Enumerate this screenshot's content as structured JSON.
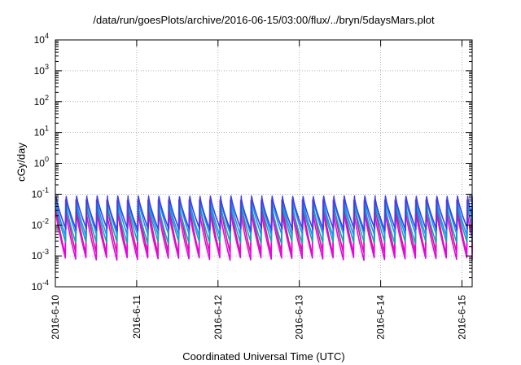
{
  "chart_data": {
    "type": "line",
    "title": "/data/run/goesPlots/archive/2016-06-15/03:00/flux/../bryn/5daysMars.plot",
    "xlabel": "Coordinated Universal Time (UTC)",
    "ylabel": "cGy/day",
    "y_scale": "log",
    "ylim": [
      0.0001,
      10000
    ],
    "y_ticks": [
      {
        "base": "10",
        "exp": "-4",
        "value": 0.0001
      },
      {
        "base": "10",
        "exp": "-3",
        "value": 0.001
      },
      {
        "base": "10",
        "exp": "-2",
        "value": 0.01
      },
      {
        "base": "10",
        "exp": "-1",
        "value": 0.1
      },
      {
        "base": "10",
        "exp": "0",
        "value": 1
      },
      {
        "base": "10",
        "exp": "1",
        "value": 10
      },
      {
        "base": "10",
        "exp": "2",
        "value": 100
      },
      {
        "base": "10",
        "exp": "3",
        "value": 1000
      },
      {
        "base": "10",
        "exp": "4",
        "value": 10000
      }
    ],
    "xlim": [
      "2016-06-10T00:00",
      "2016-06-15T03:00"
    ],
    "x_ticks": [
      "2016-6-10",
      "2016-6-11",
      "2016-6-12",
      "2016-6-13",
      "2016-6-14",
      "2016-6-15"
    ],
    "grid": true,
    "pattern": "sawtooth",
    "pulses_per_day": 7.9,
    "series": [
      {
        "color": "#d4148c",
        "peak": 0.06,
        "trough": 0.0012
      },
      {
        "color": "#ee00ee",
        "peak": 0.03,
        "trough": 0.0008
      },
      {
        "color": "#00b0b0",
        "peak": 0.05,
        "trough": 0.0026
      },
      {
        "color": "#1e90ff",
        "peak": 0.07,
        "trough": 0.0045
      },
      {
        "color": "#4040e0",
        "peak": 0.08,
        "trough": 0.007
      }
    ]
  }
}
